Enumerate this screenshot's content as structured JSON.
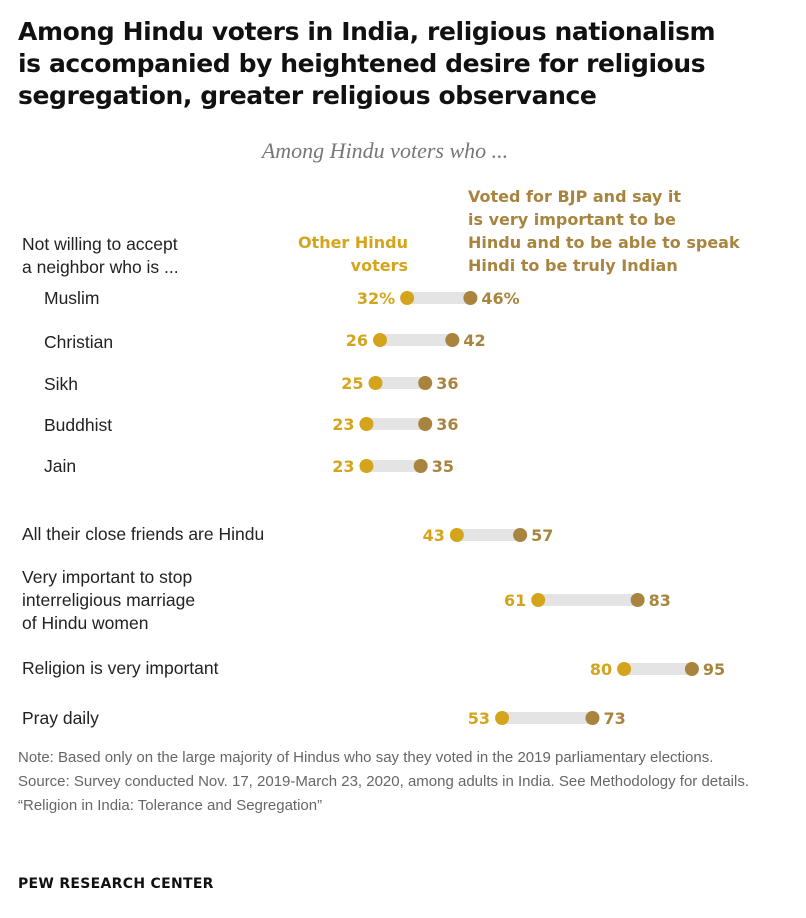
{
  "header": {
    "title": "Among Hindu voters in India, religious nationalism\nis accompanied by heightened desire for religious\nsegregation, greater religious observance",
    "subtitle": "Among Hindu voters who ..."
  },
  "legend": {
    "left_header": "Not willing to accept\na neighbor who is ...",
    "series_a": "Other Hindu\nvoters",
    "series_b": "Voted for BJP and say it\nis very important to be\nHindu and to be able to speak\nHindi to be truly Indian"
  },
  "colors": {
    "series_a": "#d4a51c",
    "series_b": "#a8843e",
    "track": "#e4e4e4"
  },
  "chart_data": {
    "type": "dot-plot",
    "xlim": [
      0,
      100
    ],
    "series": [
      {
        "name": "Other Hindu voters",
        "values": [
          32,
          26,
          25,
          23,
          23,
          43,
          61,
          80,
          53
        ]
      },
      {
        "name": "Voted for BJP and say it is very important to be Hindu and to be able to speak Hindi to be truly Indian",
        "values": [
          46,
          42,
          36,
          36,
          35,
          57,
          83,
          95,
          73
        ]
      }
    ],
    "categories": [
      "Muslim",
      "Christian",
      "Sikh",
      "Buddhist",
      "Jain",
      "All their close friends are Hindu",
      "Very important to stop\ninterreligious marriage\nof Hindu women",
      "Religion is very important",
      "Pray daily"
    ],
    "value_labels_a": [
      "32%",
      "26",
      "25",
      "23",
      "23",
      "43",
      "61",
      "80",
      "53"
    ],
    "value_labels_b": [
      "46%",
      "42",
      "36",
      "36",
      "35",
      "57",
      "83",
      "95",
      "73"
    ]
  },
  "footer": {
    "note": "Note: Based only on the large majority of Hindus who say they voted in the 2019 parliamentary elections.",
    "source": "Source: Survey conducted Nov. 17, 2019-March 23, 2020, among adults in India. See Methodology for details.",
    "report": "“Religion in India: Tolerance and Segregation”",
    "brand": "PEW RESEARCH CENTER"
  }
}
